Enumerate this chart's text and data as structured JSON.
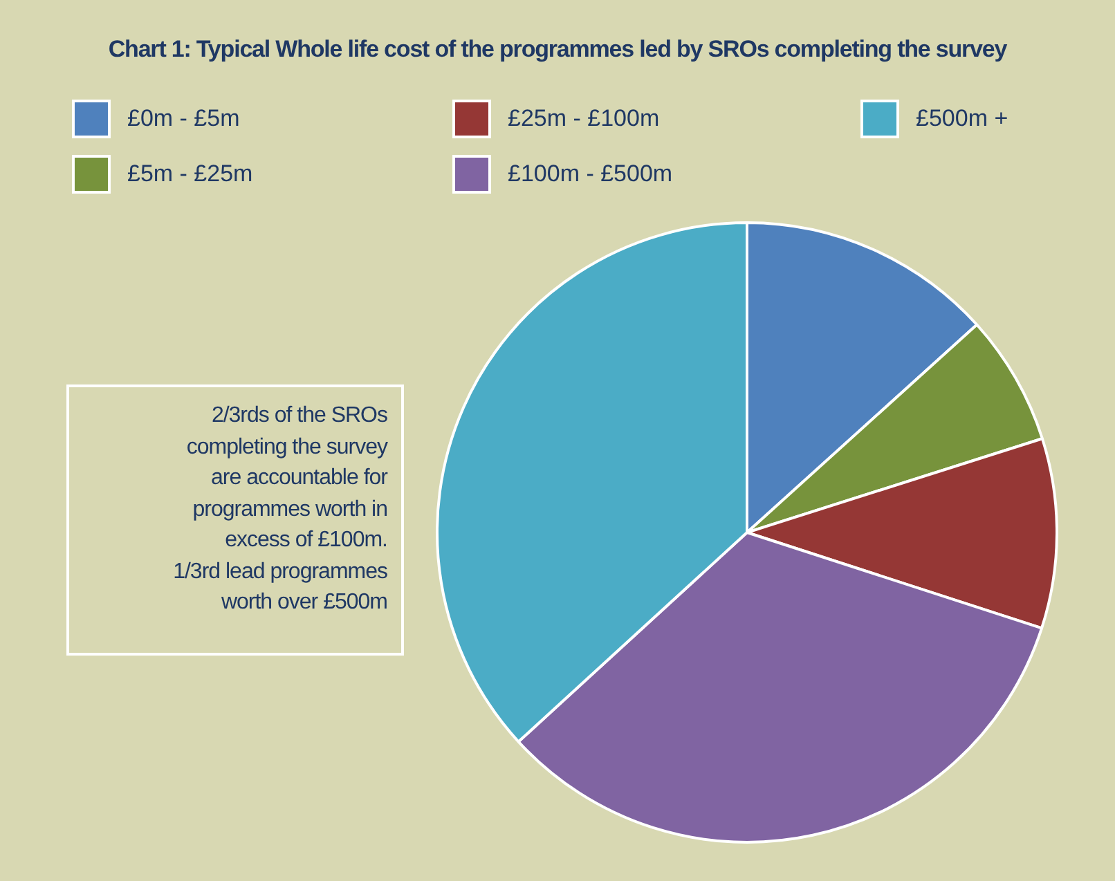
{
  "chart_data": {
    "type": "pie",
    "title": "Chart 1: Typical Whole life cost of the programmes led by SROs completing the survey",
    "categories": [
      "£0m - £5m",
      "£5m - £25m",
      "£25m  - £100m",
      "£100m  - £500m",
      "£500m +"
    ],
    "values": [
      13.3,
      6.8,
      9.9,
      33.2,
      36.8
    ],
    "colors": [
      "#4f81bd",
      "#77933c",
      "#953735",
      "#8064a2",
      "#4bacc6"
    ],
    "legend": "top",
    "annotations": [
      "2/3rds of the SROs\ncompleting the survey\nare accountable for\nprogrammes worth in\nexcess of £100m.\n1/3rd lead programmes\nworth over £500m"
    ]
  }
}
